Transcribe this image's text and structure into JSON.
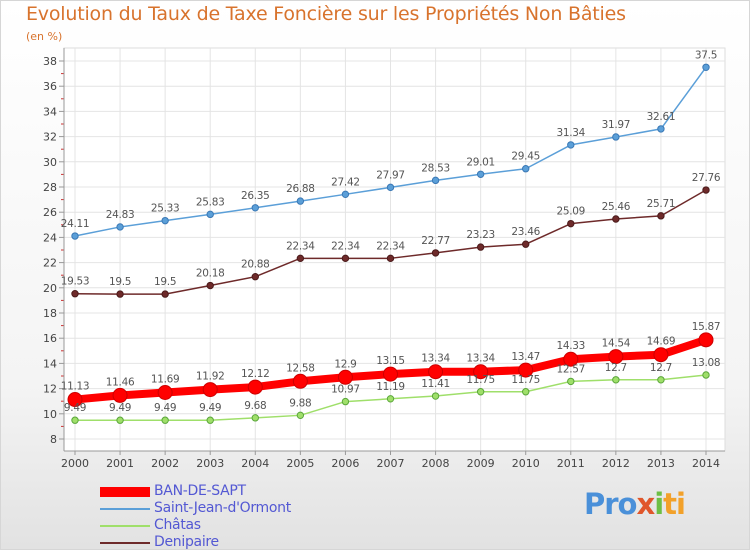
{
  "chart_data": {
    "type": "line",
    "title": "Evolution du Taux de Taxe Foncière sur les Propriétés Non Bâties",
    "unit_label": "(en %)",
    "xlabel": "",
    "ylabel": "",
    "x": [
      "2000",
      "2001",
      "2002",
      "2003",
      "2004",
      "2005",
      "2006",
      "2007",
      "2008",
      "2009",
      "2010",
      "2011",
      "2012",
      "2013",
      "2014"
    ],
    "ylim": [
      8,
      38
    ],
    "yticks": [
      8,
      10,
      12,
      14,
      16,
      18,
      20,
      22,
      24,
      26,
      28,
      30,
      32,
      34,
      36,
      38
    ],
    "grid": true,
    "legend_position": "bottom-left",
    "series": [
      {
        "name": "BAN-DE-SAPT",
        "color": "#ff0000",
        "values": [
          11.13,
          11.46,
          11.69,
          11.92,
          12.12,
          12.58,
          12.9,
          13.15,
          13.34,
          13.34,
          13.47,
          14.33,
          14.54,
          14.69,
          15.87
        ],
        "labels": [
          "11.13",
          "11.46",
          "11.69",
          "11.92",
          "12.12",
          "12.58",
          "12.9",
          "13.15",
          "13.34",
          "13.34",
          "13.47",
          "14.33",
          "14.54",
          "14.69",
          "15.87"
        ]
      },
      {
        "name": "Saint-Jean-d'Ormont",
        "color": "#5b9fd8",
        "values": [
          24.11,
          24.83,
          25.33,
          25.83,
          26.35,
          26.88,
          27.42,
          27.97,
          28.53,
          29.01,
          29.45,
          31.34,
          31.97,
          32.61,
          37.5
        ],
        "labels": [
          "24.11",
          "24.83",
          "25.33",
          "25.83",
          "26.35",
          "26.88",
          "27.42",
          "27.97",
          "28.53",
          "29.01",
          "29.45",
          "31.34",
          "31.97",
          "32.61",
          "37.5"
        ]
      },
      {
        "name": "Châtas",
        "color": "#9fdf6a",
        "values": [
          9.49,
          9.49,
          9.49,
          9.49,
          9.68,
          9.88,
          10.97,
          11.19,
          11.41,
          11.75,
          11.75,
          12.57,
          12.7,
          12.7,
          13.08
        ],
        "labels": [
          "9.49",
          "9.49",
          "9.49",
          "9.49",
          "9.68",
          "9.88",
          "10.97",
          "11.19",
          "11.41",
          "11.75",
          "11.75",
          "12.57",
          "12.7",
          "12.7",
          "13.08"
        ]
      },
      {
        "name": "Denipaire",
        "color": "#6e2a2a",
        "values": [
          19.53,
          19.5,
          19.5,
          20.18,
          20.88,
          22.34,
          22.34,
          22.34,
          22.77,
          23.23,
          23.46,
          25.09,
          25.46,
          25.71,
          27.76
        ],
        "labels": [
          "19.53",
          "19.5",
          "19.5",
          "20.18",
          "20.88",
          "22.34",
          "22.34",
          "22.34",
          "22.77",
          "23.23",
          "23.46",
          "25.09",
          "25.46",
          "25.71",
          "27.76"
        ]
      }
    ]
  },
  "legend": [
    {
      "label": "BAN-DE-SAPT",
      "color": "#ff0000"
    },
    {
      "label": "Saint-Jean-d'Ormont",
      "color": "#5b9fd8"
    },
    {
      "label": "Châtas",
      "color": "#9fdf6a"
    },
    {
      "label": "Denipaire",
      "color": "#6e2a2a"
    }
  ],
  "logo": {
    "p1": "Pro",
    "p2": "x",
    "p3": "i",
    "p4": "ti"
  }
}
